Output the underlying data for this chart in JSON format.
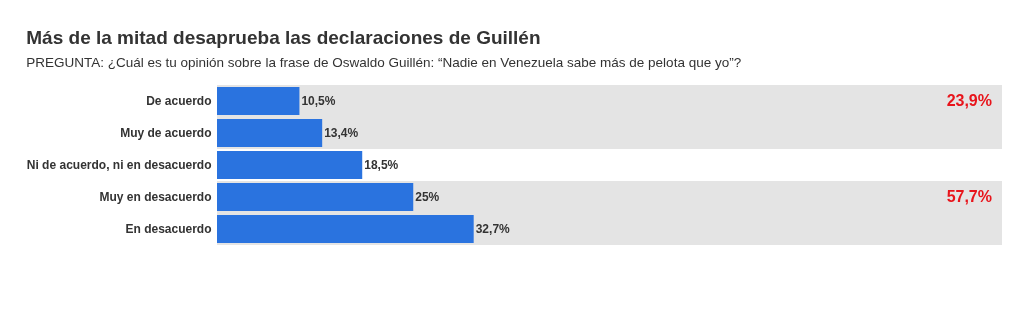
{
  "chart_data": {
    "type": "bar",
    "orientation": "horizontal",
    "title": "Más de la mitad desaprueba las declaraciones de Guillén",
    "subtitle": "PREGUNTA: ¿Cuál es tu opinión sobre la frase de Oswaldo Guillén: “Nadie en Venezuela sabe más de pelota que yo”?",
    "categories": [
      "De acuerdo",
      "Muy de acuerdo",
      "Ni de acuerdo, ni en desacuerdo",
      "Muy en desacuerdo",
      "En desacuerdo"
    ],
    "values": [
      10.5,
      13.4,
      18.5,
      25,
      32.7
    ],
    "value_labels": [
      "10,5%",
      "13,4%",
      "18,5%",
      "25%",
      "32,7%"
    ],
    "color": "#2a73df",
    "xlim": [
      0,
      100
    ],
    "bands": [
      {
        "axis": "y",
        "from": "De acuerdo",
        "to": "Muy de acuerdo",
        "label": "23,9%",
        "color": "#e4e4e4"
      },
      {
        "axis": "y",
        "from": "Muy en desacuerdo",
        "to": "En desacuerdo",
        "label": "57,7%",
        "color": "#e4e4e4"
      }
    ]
  }
}
